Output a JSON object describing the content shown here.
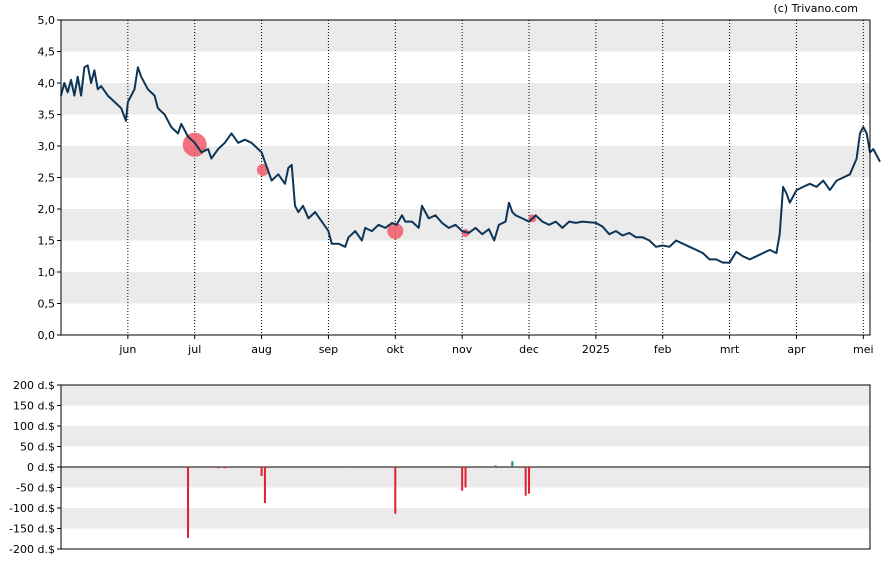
{
  "copyright": "(c) Trivano.com",
  "colors": {
    "line": "#0d3558",
    "band": "#ebebeb",
    "bubble": "#f05a66",
    "bar_negative": "#e0202e",
    "bar_positive": "#1d8a6a"
  },
  "chart_data": [
    {
      "type": "line",
      "ylim": [
        0,
        5
      ],
      "yticks": [
        "0,0",
        "0,5",
        "1,0",
        "1,5",
        "2,0",
        "2,5",
        "3,0",
        "3,5",
        "4,0",
        "4,5",
        "5,0"
      ],
      "yticks_values": [
        0,
        0.5,
        1,
        1.5,
        2,
        2.5,
        3,
        3.5,
        4,
        4.5,
        5
      ],
      "x_axis": {
        "unit": "months",
        "start": 0,
        "end": 12.1,
        "ticks": [
          {
            "label": "jun",
            "pos": 1
          },
          {
            "label": "jul",
            "pos": 2
          },
          {
            "label": "aug",
            "pos": 3
          },
          {
            "label": "sep",
            "pos": 4
          },
          {
            "label": "okt",
            "pos": 5
          },
          {
            "label": "nov",
            "pos": 6
          },
          {
            "label": "dec",
            "pos": 7
          },
          {
            "label": "2025",
            "pos": 8
          },
          {
            "label": "feb",
            "pos": 9
          },
          {
            "label": "mrt",
            "pos": 10
          },
          {
            "label": "apr",
            "pos": 11
          },
          {
            "label": "mei",
            "pos": 12
          }
        ]
      },
      "grid": "dotted vertical at month ticks, alternating horizontal bands",
      "series": [
        {
          "points": [
            [
              0.0,
              3.8
            ],
            [
              0.05,
              4.0
            ],
            [
              0.1,
              3.85
            ],
            [
              0.15,
              4.05
            ],
            [
              0.2,
              3.8
            ],
            [
              0.25,
              4.1
            ],
            [
              0.3,
              3.8
            ],
            [
              0.35,
              4.25
            ],
            [
              0.4,
              4.28
            ],
            [
              0.45,
              4.0
            ],
            [
              0.5,
              4.2
            ],
            [
              0.55,
              3.9
            ],
            [
              0.6,
              3.95
            ],
            [
              0.7,
              3.8
            ],
            [
              0.8,
              3.7
            ],
            [
              0.9,
              3.6
            ],
            [
              0.97,
              3.4
            ],
            [
              1.0,
              3.7
            ],
            [
              1.1,
              3.9
            ],
            [
              1.15,
              4.25
            ],
            [
              1.2,
              4.1
            ],
            [
              1.3,
              3.9
            ],
            [
              1.4,
              3.8
            ],
            [
              1.45,
              3.6
            ],
            [
              1.55,
              3.5
            ],
            [
              1.65,
              3.3
            ],
            [
              1.75,
              3.2
            ],
            [
              1.8,
              3.35
            ],
            [
              1.9,
              3.15
            ],
            [
              2.0,
              3.05
            ],
            [
              2.1,
              2.9
            ],
            [
              2.2,
              2.95
            ],
            [
              2.25,
              2.8
            ],
            [
              2.35,
              2.95
            ],
            [
              2.45,
              3.05
            ],
            [
              2.55,
              3.2
            ],
            [
              2.65,
              3.05
            ],
            [
              2.75,
              3.1
            ],
            [
              2.85,
              3.05
            ],
            [
              2.95,
              2.95
            ],
            [
              3.0,
              2.9
            ],
            [
              3.05,
              2.75
            ],
            [
              3.1,
              2.6
            ],
            [
              3.15,
              2.45
            ],
            [
              3.25,
              2.55
            ],
            [
              3.35,
              2.4
            ],
            [
              3.4,
              2.65
            ],
            [
              3.45,
              2.7
            ],
            [
              3.5,
              2.05
            ],
            [
              3.55,
              1.95
            ],
            [
              3.62,
              2.05
            ],
            [
              3.7,
              1.85
            ],
            [
              3.8,
              1.95
            ],
            [
              3.9,
              1.8
            ],
            [
              4.0,
              1.65
            ],
            [
              4.05,
              1.45
            ],
            [
              4.15,
              1.45
            ],
            [
              4.25,
              1.4
            ],
            [
              4.3,
              1.55
            ],
            [
              4.4,
              1.65
            ],
            [
              4.5,
              1.5
            ],
            [
              4.55,
              1.7
            ],
            [
              4.65,
              1.65
            ],
            [
              4.75,
              1.75
            ],
            [
              4.85,
              1.7
            ],
            [
              4.95,
              1.78
            ],
            [
              5.02,
              1.75
            ],
            [
              5.1,
              1.9
            ],
            [
              5.15,
              1.8
            ],
            [
              5.25,
              1.8
            ],
            [
              5.35,
              1.7
            ],
            [
              5.4,
              2.05
            ],
            [
              5.5,
              1.85
            ],
            [
              5.6,
              1.9
            ],
            [
              5.7,
              1.78
            ],
            [
              5.8,
              1.7
            ],
            [
              5.9,
              1.75
            ],
            [
              6.0,
              1.65
            ],
            [
              6.1,
              1.62
            ],
            [
              6.2,
              1.7
            ],
            [
              6.3,
              1.6
            ],
            [
              6.4,
              1.68
            ],
            [
              6.48,
              1.5
            ],
            [
              6.55,
              1.75
            ],
            [
              6.65,
              1.8
            ],
            [
              6.7,
              2.1
            ],
            [
              6.75,
              1.95
            ],
            [
              6.8,
              1.9
            ],
            [
              6.9,
              1.85
            ],
            [
              7.0,
              1.8
            ],
            [
              7.1,
              1.9
            ],
            [
              7.2,
              1.8
            ],
            [
              7.3,
              1.75
            ],
            [
              7.4,
              1.8
            ],
            [
              7.5,
              1.7
            ],
            [
              7.6,
              1.8
            ],
            [
              7.7,
              1.78
            ],
            [
              7.8,
              1.8
            ],
            [
              8.0,
              1.78
            ],
            [
              8.1,
              1.72
            ],
            [
              8.2,
              1.6
            ],
            [
              8.3,
              1.65
            ],
            [
              8.4,
              1.58
            ],
            [
              8.5,
              1.62
            ],
            [
              8.6,
              1.55
            ],
            [
              8.7,
              1.55
            ],
            [
              8.8,
              1.5
            ],
            [
              8.9,
              1.4
            ],
            [
              9.0,
              1.42
            ],
            [
              9.1,
              1.4
            ],
            [
              9.2,
              1.5
            ],
            [
              9.3,
              1.45
            ],
            [
              9.4,
              1.4
            ],
            [
              9.5,
              1.35
            ],
            [
              9.6,
              1.3
            ],
            [
              9.7,
              1.2
            ],
            [
              9.8,
              1.2
            ],
            [
              9.9,
              1.15
            ],
            [
              10.0,
              1.15
            ],
            [
              10.1,
              1.32
            ],
            [
              10.2,
              1.25
            ],
            [
              10.3,
              1.2
            ],
            [
              10.4,
              1.25
            ],
            [
              10.5,
              1.3
            ],
            [
              10.6,
              1.35
            ],
            [
              10.7,
              1.3
            ],
            [
              10.75,
              1.6
            ],
            [
              10.8,
              2.35
            ],
            [
              10.85,
              2.25
            ],
            [
              10.9,
              2.1
            ],
            [
              11.0,
              2.3
            ],
            [
              11.1,
              2.35
            ],
            [
              11.2,
              2.4
            ],
            [
              11.3,
              2.35
            ],
            [
              11.4,
              2.45
            ],
            [
              11.5,
              2.3
            ],
            [
              11.6,
              2.45
            ],
            [
              11.7,
              2.5
            ],
            [
              11.8,
              2.55
            ],
            [
              11.9,
              2.8
            ],
            [
              11.95,
              3.2
            ],
            [
              12.0,
              3.3
            ],
            [
              12.05,
              3.2
            ],
            [
              12.1,
              2.9
            ],
            [
              12.15,
              2.95
            ],
            [
              12.2,
              2.85
            ],
            [
              12.25,
              2.75
            ]
          ]
        }
      ],
      "bubbles": [
        {
          "x": 2.0,
          "y": 3.02,
          "size": "large"
        },
        {
          "x": 3.02,
          "y": 2.62,
          "size": "small"
        },
        {
          "x": 5.0,
          "y": 1.65,
          "size": "medium"
        },
        {
          "x": 6.05,
          "y": 1.62,
          "size": "tiny"
        },
        {
          "x": 7.05,
          "y": 1.85,
          "size": "tiny"
        }
      ]
    },
    {
      "type": "bar",
      "ylim": [
        -200,
        200
      ],
      "yticks": [
        "200 d.$",
        "150 d.$",
        "100 d.$",
        "50 d.$",
        "0 d.$",
        "-50 d.$",
        "-100 d.$",
        "-150 d.$",
        "-200 d.$"
      ],
      "yticks_values": [
        200,
        150,
        100,
        50,
        0,
        -50,
        -100,
        -150,
        -200
      ],
      "bars": [
        {
          "x": 1.9,
          "value": -173
        },
        {
          "x": 2.35,
          "value": -3
        },
        {
          "x": 2.45,
          "value": -3
        },
        {
          "x": 3.0,
          "value": -22
        },
        {
          "x": 3.05,
          "value": -88
        },
        {
          "x": 4.25,
          "value": 2
        },
        {
          "x": 5.0,
          "value": -114
        },
        {
          "x": 6.0,
          "value": -58
        },
        {
          "x": 6.05,
          "value": -50
        },
        {
          "x": 6.5,
          "value": 4
        },
        {
          "x": 6.75,
          "value": 14
        },
        {
          "x": 6.95,
          "value": -70
        },
        {
          "x": 7.0,
          "value": -65
        }
      ]
    }
  ]
}
